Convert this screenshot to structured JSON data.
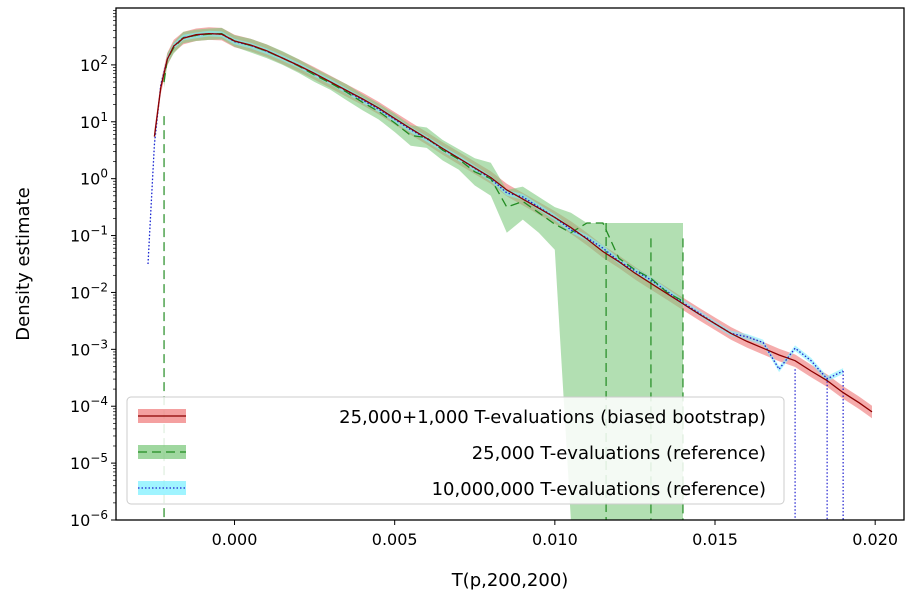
{
  "chart_data": {
    "type": "line",
    "title": "",
    "xlabel": "T(p,200,200)",
    "ylabel": "Density estimate",
    "xlim": [
      -0.0037,
      0.0209
    ],
    "ylim_log10": [
      -6,
      3.0
    ],
    "y_scale": "log",
    "grid": false,
    "legend_position": "lower-left",
    "x_ticks": [
      {
        "value": 0.0,
        "label": "0.000"
      },
      {
        "value": 0.005,
        "label": "0.005"
      },
      {
        "value": 0.01,
        "label": "0.010"
      },
      {
        "value": 0.015,
        "label": "0.015"
      },
      {
        "value": 0.02,
        "label": "0.020"
      }
    ],
    "y_ticks": [
      {
        "exp": 2,
        "base": "10",
        "sup": "2"
      },
      {
        "exp": 1,
        "base": "10",
        "sup": "1"
      },
      {
        "exp": 0,
        "base": "10",
        "sup": "0"
      },
      {
        "exp": -1,
        "base": "10",
        "sup": "−1"
      },
      {
        "exp": -2,
        "base": "10",
        "sup": "−2"
      },
      {
        "exp": -3,
        "base": "10",
        "sup": "−3"
      },
      {
        "exp": -4,
        "base": "10",
        "sup": "−4"
      },
      {
        "exp": -5,
        "base": "10",
        "sup": "−5"
      },
      {
        "exp": -6,
        "base": "10",
        "sup": "−6"
      }
    ],
    "series": [
      {
        "name": "25,000+1,000 T-evaluations (biased bootstrap)",
        "line_color": "#8b0000",
        "band_color": "#f08080",
        "line_style": "solid",
        "x": [
          -0.0025,
          -0.0023,
          -0.0021,
          -0.0019,
          -0.0016,
          -0.0012,
          -0.0008,
          -0.0004,
          0.0,
          0.0005,
          0.001,
          0.0015,
          0.002,
          0.0025,
          0.003,
          0.0035,
          0.004,
          0.0045,
          0.005,
          0.0055,
          0.006,
          0.0065,
          0.007,
          0.0075,
          0.008,
          0.0085,
          0.009,
          0.0095,
          0.01,
          0.0105,
          0.011,
          0.0115,
          0.012,
          0.0125,
          0.013,
          0.0135,
          0.014,
          0.0145,
          0.015,
          0.0155,
          0.016,
          0.0165,
          0.017,
          0.0175,
          0.018,
          0.0185,
          0.019,
          0.0195,
          0.0199
        ],
        "y_log10": [
          0.74,
          1.6,
          2.1,
          2.33,
          2.47,
          2.53,
          2.55,
          2.54,
          2.42,
          2.35,
          2.25,
          2.12,
          1.99,
          1.85,
          1.7,
          1.55,
          1.4,
          1.24,
          1.06,
          0.88,
          0.71,
          0.53,
          0.36,
          0.19,
          0.02,
          -0.2,
          -0.36,
          -0.52,
          -0.68,
          -0.86,
          -1.06,
          -1.28,
          -1.46,
          -1.66,
          -1.84,
          -2.02,
          -2.2,
          -2.38,
          -2.55,
          -2.72,
          -2.86,
          -2.98,
          -3.1,
          -3.2,
          -3.38,
          -3.55,
          -3.76,
          -3.94,
          -4.1
        ],
        "band_halfwidth_log10": 0.11
      },
      {
        "name": "25,000 T-evaluations (reference)",
        "line_color": "#228b22",
        "band_color": "#7fc97f",
        "line_style": "dashed",
        "x": [
          -0.0022,
          -0.0021,
          -0.0019,
          -0.0016,
          -0.0012,
          -0.0008,
          -0.0004,
          0.0,
          0.0005,
          0.001,
          0.0015,
          0.002,
          0.0025,
          0.003,
          0.0035,
          0.004,
          0.0045,
          0.005,
          0.0055,
          0.006,
          0.0065,
          0.007,
          0.0075,
          0.008,
          0.0085,
          0.009,
          0.0095,
          0.01,
          0.0105,
          0.011,
          0.0113,
          0.0115,
          0.012,
          0.0125,
          0.013,
          0.0135,
          0.014
        ],
        "y_log10": [
          1.7,
          2.1,
          2.3,
          2.48,
          2.52,
          2.54,
          2.55,
          2.42,
          2.34,
          2.24,
          2.12,
          1.98,
          1.82,
          1.68,
          1.52,
          1.34,
          1.18,
          0.98,
          0.76,
          0.72,
          0.5,
          0.34,
          0.12,
          0.0,
          -0.5,
          -0.4,
          -0.6,
          -0.8,
          -0.95,
          -0.78,
          -0.78,
          -0.78,
          -1.4,
          -1.6,
          -1.75,
          -2.0,
          -2.15
        ],
        "band_upper_log10": [
          1.8,
          2.2,
          2.4,
          2.58,
          2.62,
          2.64,
          2.65,
          2.52,
          2.46,
          2.36,
          2.24,
          2.1,
          1.94,
          1.8,
          1.66,
          1.48,
          1.32,
          1.14,
          0.94,
          0.9,
          0.68,
          0.52,
          0.36,
          0.28,
          -0.2,
          -0.14,
          -0.32,
          -0.5,
          -0.6,
          -0.78,
          -0.78,
          -0.78,
          -0.78,
          -0.78,
          -0.78,
          -0.78,
          -0.78
        ],
        "band_lower_log10": [
          1.6,
          2.0,
          2.2,
          2.38,
          2.42,
          2.44,
          2.45,
          2.32,
          2.22,
          2.12,
          2.0,
          1.86,
          1.7,
          1.56,
          1.38,
          1.2,
          1.04,
          0.82,
          0.58,
          0.54,
          0.32,
          0.16,
          -0.12,
          -0.3,
          -0.95,
          -0.72,
          -0.95,
          -1.25,
          -6,
          -6,
          -6,
          -6,
          -6,
          -6,
          -6,
          -6,
          -6
        ],
        "spikes_x": [
          -0.0022,
          0.0116,
          0.013,
          0.014
        ],
        "spikes_top_log10": [
          1.1,
          -0.78,
          -1.05,
          -1.05
        ]
      },
      {
        "name": "10,000,000 T-evaluations (reference)",
        "line_color": "#1f1fd0",
        "band_color": "#80f0ff",
        "line_style": "dotted",
        "x": [
          -0.0027,
          -0.0025,
          -0.0023,
          -0.0021,
          -0.0019,
          -0.0016,
          -0.0012,
          -0.0008,
          -0.0004,
          0.0,
          0.0005,
          0.001,
          0.0015,
          0.002,
          0.0025,
          0.003,
          0.0035,
          0.004,
          0.0045,
          0.005,
          0.0055,
          0.006,
          0.0065,
          0.007,
          0.0075,
          0.008,
          0.0085,
          0.009,
          0.0095,
          0.01,
          0.0105,
          0.011,
          0.0115,
          0.012,
          0.0125,
          0.013,
          0.0135,
          0.014,
          0.0145,
          0.015,
          0.0155,
          0.016,
          0.0165,
          0.017,
          0.0175,
          0.018,
          0.0185,
          0.019
        ],
        "y_log10": [
          -1.5,
          0.6,
          1.65,
          2.1,
          2.33,
          2.48,
          2.52,
          2.55,
          2.54,
          2.41,
          2.34,
          2.24,
          2.12,
          1.99,
          1.84,
          1.7,
          1.54,
          1.38,
          1.22,
          1.04,
          0.86,
          0.7,
          0.52,
          0.36,
          0.18,
          0.0,
          -0.25,
          -0.32,
          -0.5,
          -0.68,
          -0.9,
          -1.04,
          -1.22,
          -1.45,
          -1.62,
          -1.78,
          -1.98,
          -2.18,
          -2.36,
          -2.55,
          -2.72,
          -2.78,
          -2.88,
          -3.35,
          -2.98,
          -3.2,
          -3.52,
          -3.38
        ],
        "band_halfwidth_log10": 0.05,
        "spikes_x": [
          0.0175,
          0.0185,
          0.019
        ],
        "spikes_top_log10": [
          -3.35,
          -3.5,
          -3.38
        ]
      }
    ]
  }
}
